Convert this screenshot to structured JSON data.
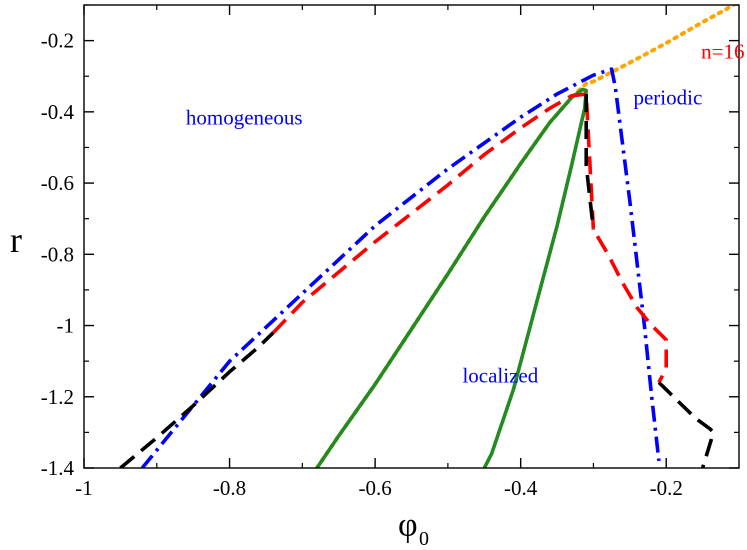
{
  "chart_data": {
    "type": "line",
    "title": "",
    "xlabel": "φ",
    "xlabel_subscript": "0",
    "ylabel": "r",
    "xlim": [
      -1.0,
      -0.1
    ],
    "ylim": [
      -1.4,
      -0.1
    ],
    "xticks": [
      -1,
      -0.8,
      -0.6,
      -0.4,
      -0.2
    ],
    "xtick_labels": [
      "-1",
      "-0.8",
      "-0.6",
      "-0.4",
      "-0.2"
    ],
    "yticks": [
      -0.2,
      -0.4,
      -0.6,
      -0.8,
      -1,
      -1.2,
      -1.4
    ],
    "ytick_labels": [
      "-0.2",
      "-0.4",
      "-0.6",
      "-0.8",
      "-1",
      "-1.2",
      "-1.4"
    ],
    "grid": false,
    "annotations": [
      {
        "text": "homogeneous",
        "x": -0.86,
        "y": -0.435,
        "color": "#0000ff"
      },
      {
        "text": "periodic",
        "x": -0.245,
        "y": -0.38,
        "color": "#0000ff"
      },
      {
        "text": "localized",
        "x": -0.48,
        "y": -1.16,
        "color": "#0000ff"
      },
      {
        "text": "n=16",
        "x": -0.152,
        "y": -0.25,
        "color": "#ff0000"
      }
    ],
    "series": [
      {
        "name": "orange-dotted",
        "color": "#ffa500",
        "style": "dotted",
        "x": [
          -0.68,
          -0.65,
          -0.6,
          -0.55,
          -0.5,
          -0.45,
          -0.4,
          -0.36,
          -0.33,
          -0.31,
          -0.3,
          -0.25,
          -0.2,
          -0.15,
          -0.12,
          -0.1
        ],
        "y": [
          -1.4,
          -1.31,
          -1.165,
          -1.01,
          -0.855,
          -0.695,
          -0.545,
          -0.43,
          -0.36,
          -0.32,
          -0.315,
          -0.262,
          -0.207,
          -0.148,
          -0.115,
          -0.09
        ]
      },
      {
        "name": "green-solid",
        "color": "#228b22",
        "style": "solid",
        "x": [
          -0.68,
          -0.65,
          -0.6,
          -0.55,
          -0.5,
          -0.45,
          -0.4,
          -0.36,
          -0.33,
          -0.315,
          -0.31,
          -0.312,
          -0.33,
          -0.35,
          -0.38,
          -0.41,
          -0.44,
          -0.45
        ],
        "y": [
          -1.4,
          -1.31,
          -1.165,
          -1.01,
          -0.855,
          -0.695,
          -0.545,
          -0.43,
          -0.36,
          -0.337,
          -0.34,
          -0.39,
          -0.55,
          -0.72,
          -0.95,
          -1.18,
          -1.36,
          -1.4
        ]
      },
      {
        "name": "blue-dashdot",
        "color": "#0000ff",
        "style": "dashdot",
        "x": [
          -0.92,
          -0.88,
          -0.8,
          -0.7,
          -0.6,
          -0.5,
          -0.4,
          -0.35,
          -0.3,
          -0.275,
          -0.27,
          -0.25,
          -0.23,
          -0.22,
          -0.21
        ],
        "y": [
          -1.4,
          -1.3,
          -1.1,
          -0.91,
          -0.72,
          -0.56,
          -0.415,
          -0.35,
          -0.297,
          -0.28,
          -0.33,
          -0.65,
          -1.0,
          -1.2,
          -1.38
        ]
      },
      {
        "name": "red-dashed",
        "color": "#ff0000",
        "style": "dashed",
        "x": [
          -0.74,
          -0.7,
          -0.65,
          -0.6,
          -0.55,
          -0.5,
          -0.45,
          -0.4,
          -0.36,
          -0.33,
          -0.31,
          -0.3,
          -0.28,
          -0.26,
          -0.24,
          -0.22,
          -0.205,
          -0.2,
          -0.2,
          -0.21
        ],
        "y": [
          -1.02,
          -0.935,
          -0.85,
          -0.765,
          -0.685,
          -0.605,
          -0.52,
          -0.445,
          -0.39,
          -0.355,
          -0.35,
          -0.73,
          -0.8,
          -0.88,
          -0.95,
          -1.0,
          -1.03,
          -1.04,
          -1.12,
          -1.16
        ]
      },
      {
        "name": "black-dashed",
        "color": "#000000",
        "style": "dashed",
        "x": [
          -0.95,
          -0.9,
          -0.85,
          -0.8,
          -0.76,
          -0.74
        ],
        "y": [
          -1.4,
          -1.315,
          -1.225,
          -1.13,
          -1.06,
          -1.02
        ]
      },
      {
        "name": "black-dashed-mid",
        "color": "#000000",
        "style": "dashed",
        "x": [
          -0.31,
          -0.31,
          -0.3
        ],
        "y": [
          -0.35,
          -0.55,
          -0.73
        ]
      },
      {
        "name": "black-dashed-right",
        "color": "#000000",
        "style": "dashed",
        "x": [
          -0.21,
          -0.2,
          -0.18,
          -0.16,
          -0.14,
          -0.135,
          -0.15
        ],
        "y": [
          -1.16,
          -1.18,
          -1.22,
          -1.26,
          -1.29,
          -1.3,
          -1.4
        ]
      }
    ]
  }
}
